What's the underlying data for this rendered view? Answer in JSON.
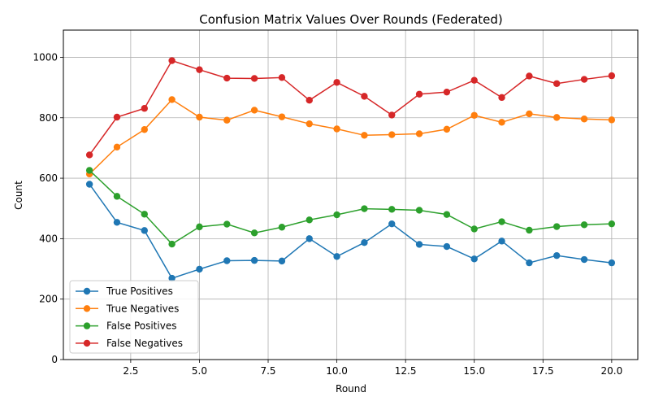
{
  "chart_data": {
    "type": "line",
    "title": "Confusion Matrix Values Over Rounds (Federated)",
    "xlabel": "Round",
    "ylabel": "Count",
    "xlim": [
      0.05,
      20.95
    ],
    "ylim": [
      0,
      1090
    ],
    "xticks": [
      2.5,
      5.0,
      7.5,
      10.0,
      12.5,
      15.0,
      17.5,
      20.0
    ],
    "xtick_labels": [
      "2.5",
      "5.0",
      "7.5",
      "10.0",
      "12.5",
      "15.0",
      "17.5",
      "20.0"
    ],
    "yticks": [
      0,
      200,
      400,
      600,
      800,
      1000
    ],
    "ytick_labels": [
      "0",
      "200",
      "400",
      "600",
      "800",
      "1000"
    ],
    "grid": true,
    "legend_position": "lower-left",
    "x": [
      1,
      2,
      3,
      4,
      5,
      6,
      7,
      8,
      9,
      10,
      11,
      12,
      13,
      14,
      15,
      16,
      17,
      18,
      19,
      20
    ],
    "series": [
      {
        "name": "True Positives",
        "color": "#1f77b4",
        "values": [
          580,
          454,
          427,
          269,
          299,
          327,
          328,
          326,
          400,
          341,
          387,
          449,
          381,
          374,
          333,
          392,
          320,
          344,
          331,
          320
        ]
      },
      {
        "name": "True Negatives",
        "color": "#ff7f0e",
        "values": [
          614,
          703,
          761,
          860,
          802,
          792,
          825,
          803,
          780,
          763,
          742,
          744,
          747,
          762,
          808,
          785,
          813,
          801,
          796,
          793
        ]
      },
      {
        "name": "False Positives",
        "color": "#2ca02c",
        "values": [
          626,
          540,
          481,
          382,
          439,
          448,
          419,
          438,
          462,
          479,
          499,
          497,
          494,
          480,
          432,
          456,
          428,
          440,
          446,
          449
        ]
      },
      {
        "name": "False Negatives",
        "color": "#d62728",
        "values": [
          677,
          802,
          831,
          989,
          959,
          931,
          930,
          933,
          858,
          917,
          871,
          809,
          878,
          885,
          924,
          867,
          938,
          913,
          927,
          939
        ]
      }
    ]
  }
}
